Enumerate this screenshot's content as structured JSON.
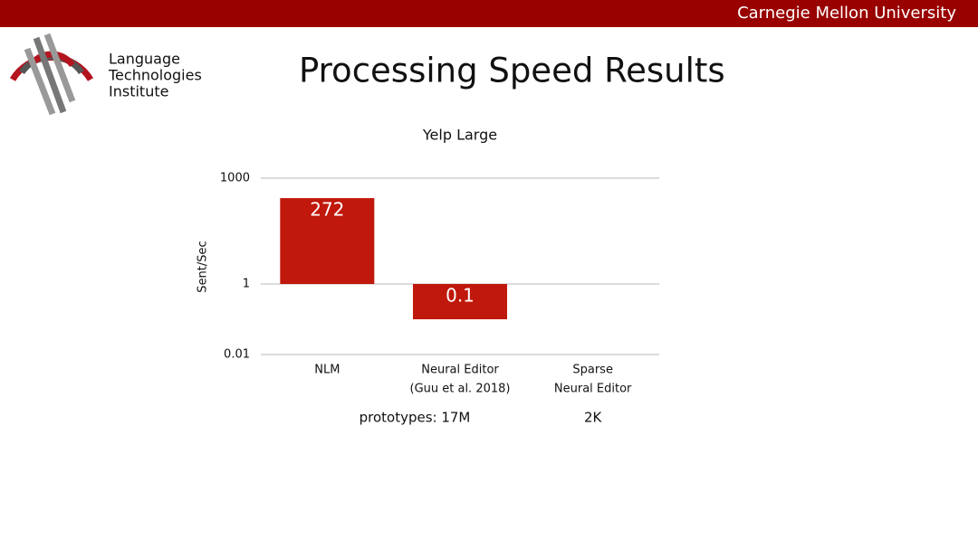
{
  "header": {
    "institution": "Carnegie Mellon University"
  },
  "logo": {
    "lines": [
      "Language",
      "Technologies",
      "Institute"
    ]
  },
  "slide_title": "Processing Speed Results",
  "chart_data": {
    "type": "bar",
    "title": "Yelp Large",
    "y_label": "Sent/Sec",
    "categories": [
      [
        "NLM"
      ],
      [
        "Neural Editor",
        "(Guu et al. 2018)"
      ],
      [
        "Sparse",
        "Neural Editor"
      ]
    ],
    "values": [
      272,
      0.1,
      null
    ],
    "color": "#c0180c",
    "ylim": [
      0.01,
      1000
    ],
    "yticks": [
      0.01,
      1,
      1000
    ],
    "log_scale": true,
    "grid": true,
    "annotations": [
      "prototypes: 17M",
      "2K"
    ]
  }
}
